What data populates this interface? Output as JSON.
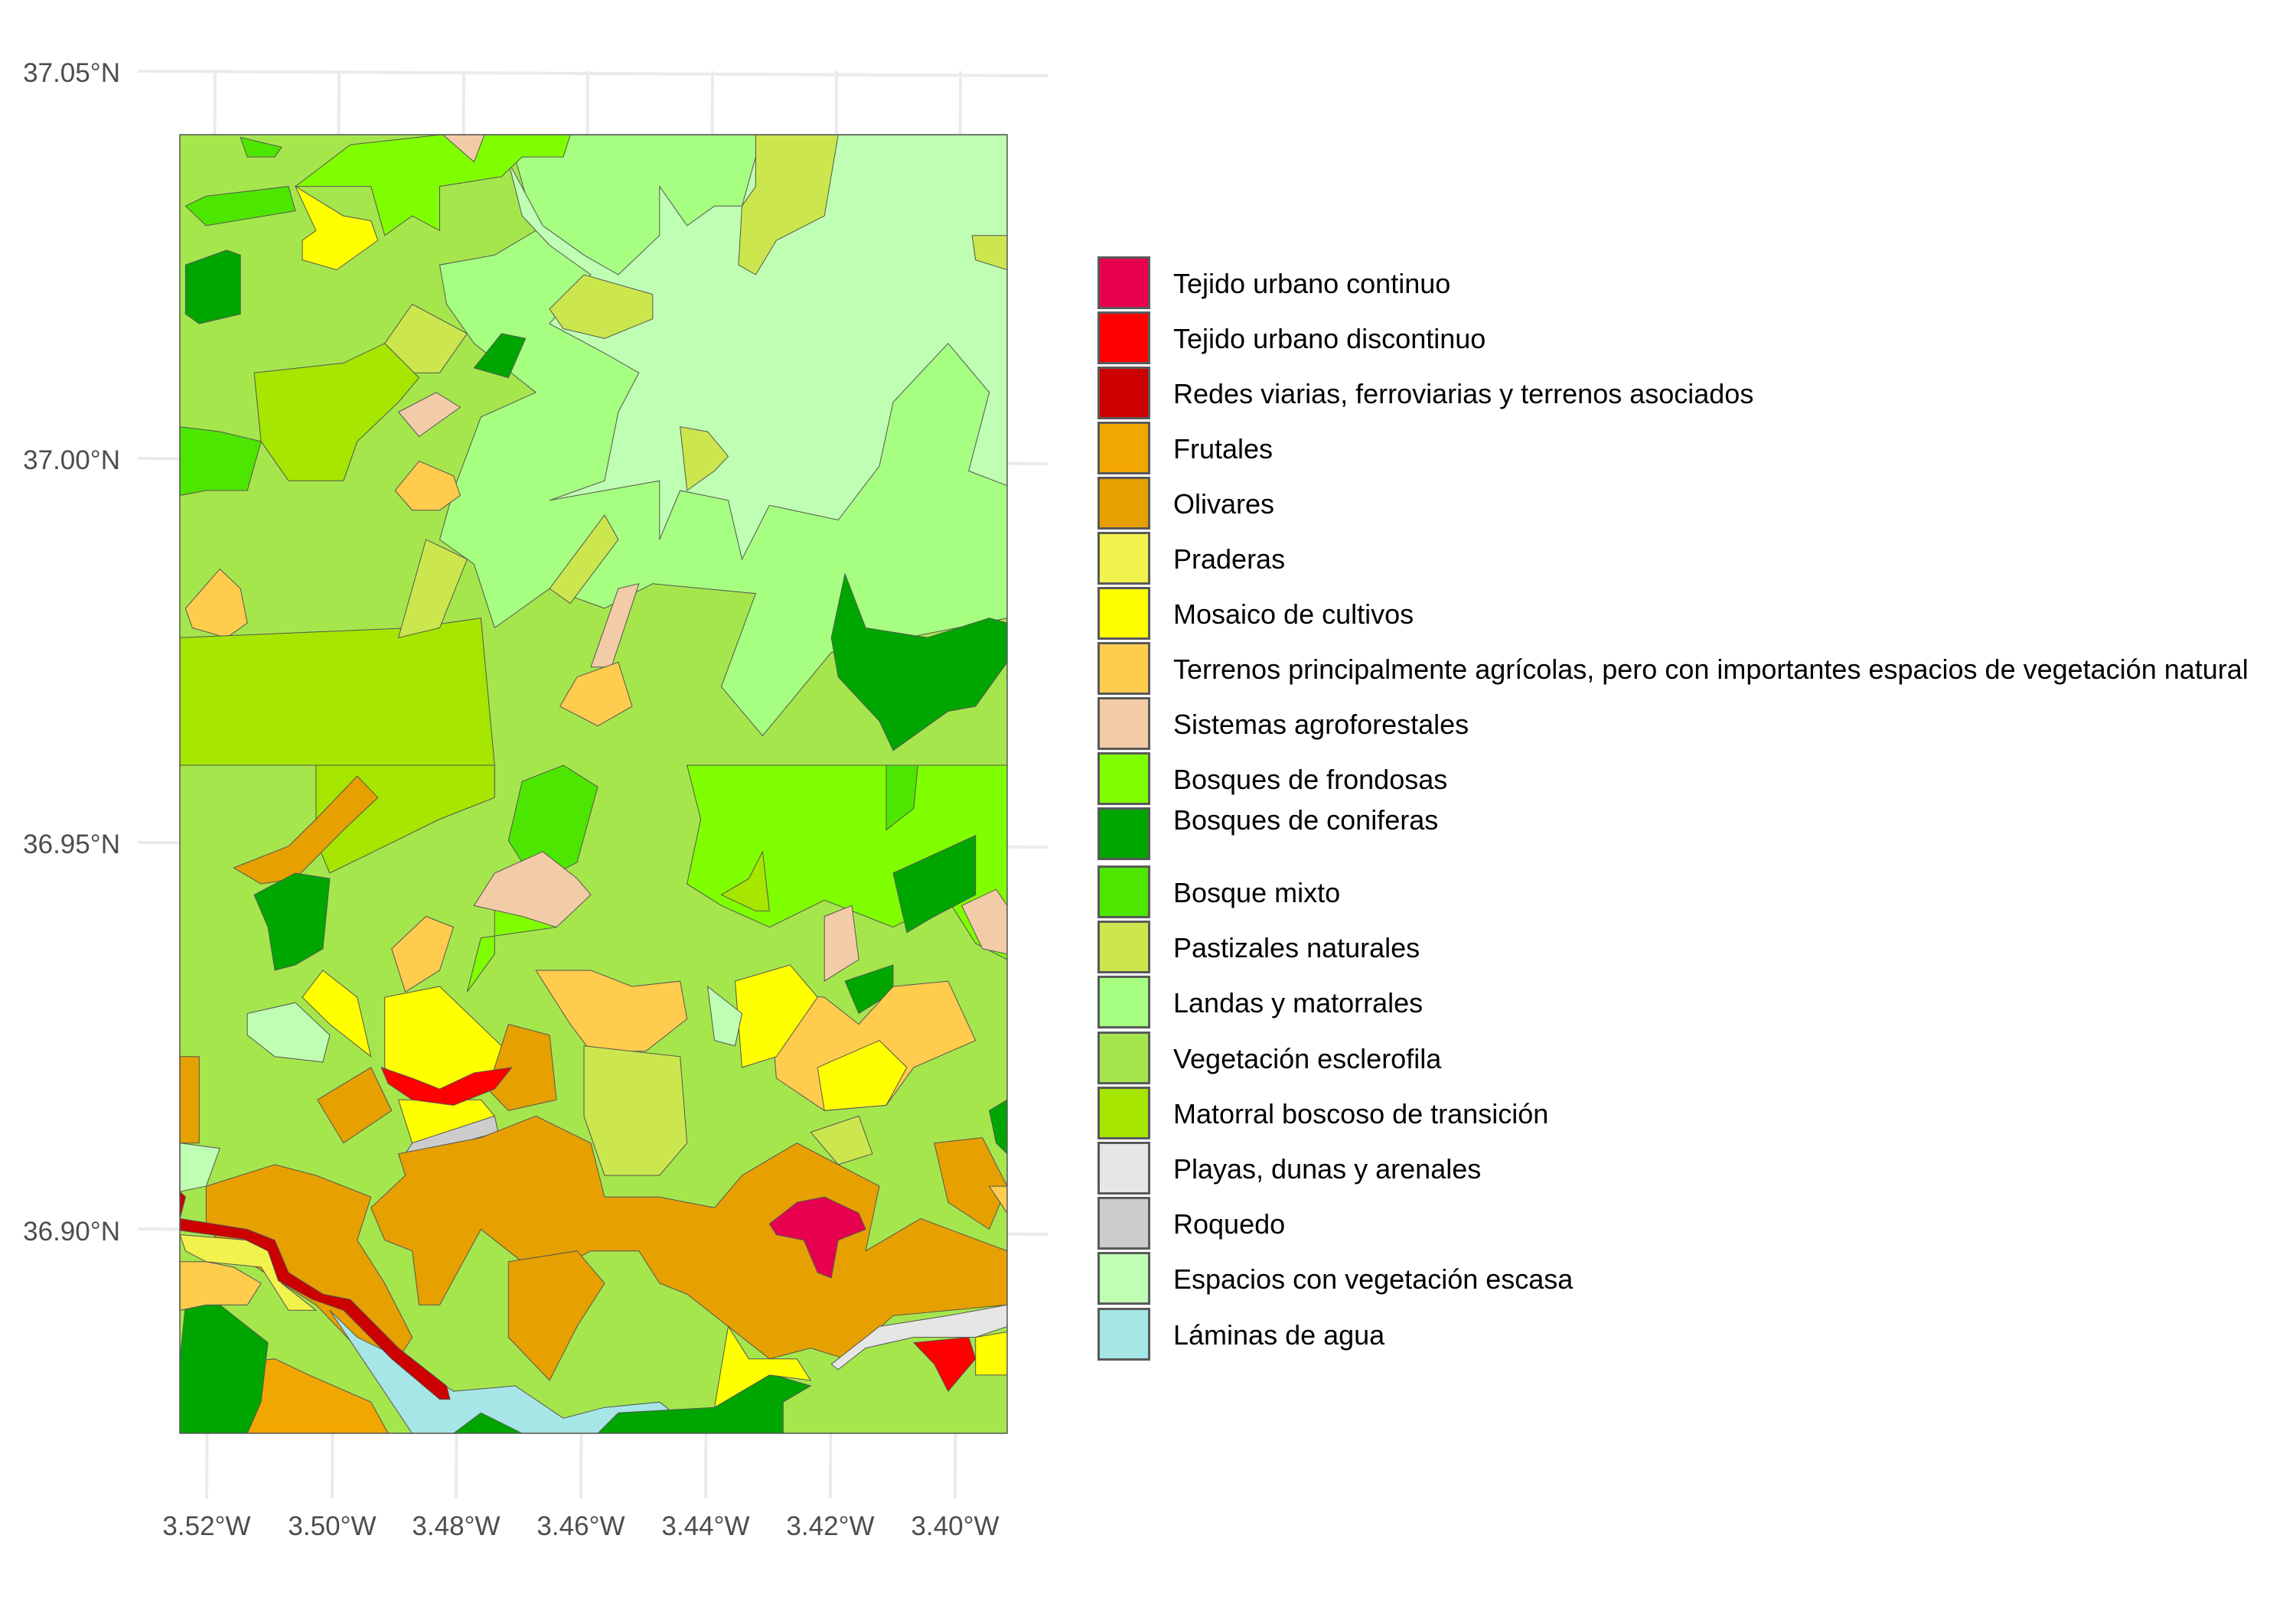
{
  "map": {
    "y_ticks": [
      "37.05°N",
      "37.00°N",
      "36.95°N",
      "36.90°N"
    ],
    "x_ticks": [
      "3.52°W",
      "3.50°W",
      "3.48°W",
      "3.46°W",
      "3.44°W",
      "3.42°W",
      "3.40°W"
    ],
    "grid": true,
    "legend_position": "right"
  },
  "legend": [
    {
      "label": "Tejido urbano continuo",
      "color": "#e6004d"
    },
    {
      "label": "Tejido urbano discontinuo",
      "color": "#ff0000"
    },
    {
      "label": "Redes viarias, ferroviarias y terrenos asociados",
      "color": "#cc0000"
    },
    {
      "label": "Frutales",
      "color": "#f2a600"
    },
    {
      "label": "Olivares",
      "color": "#e6a000"
    },
    {
      "label": "Praderas",
      "color": "#f2f24d"
    },
    {
      "label": "Mosaico de cultivos",
      "color": "#ffff00"
    },
    {
      "label": "Terrenos principalmente agrícolas, pero con importantes espacios de vegetación natural",
      "color": "#ffcc4d"
    },
    {
      "label": "Sistemas agroforestales",
      "color": "#f2cca6"
    },
    {
      "label": "Bosques de frondosas",
      "color": "#80ff00"
    },
    {
      "label": "Bosques de coniferas",
      "color": "#00a600"
    },
    {
      "label": "Bosque mixto",
      "color": "#4de600"
    },
    {
      "label": "Pastizales naturales",
      "color": "#cce64d"
    },
    {
      "label": "Landas y matorrales",
      "color": "#a6ff80"
    },
    {
      "label": "Vegetación esclerofila",
      "color": "#a6e64d"
    },
    {
      "label": "Matorral boscoso de transición",
      "color": "#a6e600"
    },
    {
      "label": "Playas, dunas y arenales",
      "color": "#e6e6e6"
    },
    {
      "label": "Roquedo",
      "color": "#cccccc"
    },
    {
      "label": "Espacios con vegetación escasa",
      "color": "#bfffb3"
    },
    {
      "label": "Láminas de agua",
      "color": "#a6e6e6"
    }
  ]
}
